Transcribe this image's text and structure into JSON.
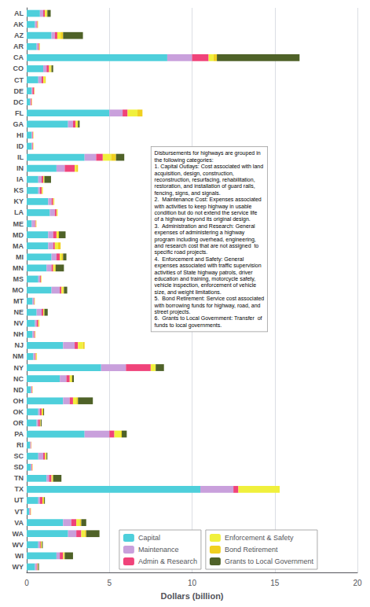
{
  "chart_data": {
    "type": "bar",
    "orientation": "horizontal",
    "stacked": true,
    "xlabel": "Dollars (billion)",
    "xlim": [
      0,
      20
    ],
    "xticks": [
      0,
      5,
      10,
      15,
      20
    ],
    "grid": true,
    "legend": "lower left",
    "categories": [
      "AL",
      "AK",
      "AZ",
      "AR",
      "CA",
      "CO",
      "CT",
      "DE",
      "DC",
      "FL",
      "GA",
      "HI",
      "ID",
      "IL",
      "IN",
      "IA",
      "KS",
      "KY",
      "LA",
      "ME",
      "MD",
      "MA",
      "MI",
      "MN",
      "MS",
      "MO",
      "MT",
      "NE",
      "NV",
      "NH",
      "NJ",
      "NM",
      "NY",
      "NC",
      "ND",
      "OH",
      "OK",
      "OR",
      "PA",
      "RI",
      "SC",
      "SD",
      "TN",
      "TX",
      "UT",
      "VT",
      "VA",
      "WA",
      "WV",
      "WI",
      "WY"
    ],
    "series": [
      {
        "name": "Capital",
        "color": "#4ECFDB",
        "values": [
          0.8,
          0.5,
          1.5,
          0.6,
          8.5,
          1.0,
          0.7,
          0.3,
          0.2,
          5.0,
          2.5,
          0.3,
          0.3,
          3.5,
          1.8,
          0.7,
          0.7,
          1.3,
          1.4,
          0.3,
          1.3,
          1.3,
          1.5,
          1.2,
          0.7,
          1.5,
          0.35,
          0.6,
          0.5,
          0.35,
          2.2,
          0.4,
          4.5,
          2.0,
          0.25,
          2.2,
          0.7,
          0.6,
          3.5,
          0.2,
          0.7,
          0.25,
          1.2,
          10.5,
          0.7,
          0.15,
          2.2,
          2.5,
          0.7,
          1.8,
          0.5
        ]
      },
      {
        "name": "Maintenance",
        "color": "#C9A0DC",
        "values": [
          0.2,
          0.1,
          0.2,
          0.1,
          1.5,
          0.2,
          0.2,
          0.05,
          0.05,
          0.8,
          0.3,
          0.05,
          0.05,
          0.7,
          0.5,
          0.2,
          0.1,
          0.2,
          0.3,
          0.2,
          0.3,
          0.3,
          0.3,
          0.3,
          0.1,
          0.5,
          0.08,
          0.3,
          0.1,
          0.1,
          0.7,
          0.1,
          1.5,
          0.4,
          0.05,
          0.4,
          0.1,
          0.1,
          1.5,
          0.05,
          0.3,
          0.05,
          0.15,
          2.0,
          0.1,
          0.05,
          0.5,
          0.5,
          0.1,
          0.2,
          0.1
        ]
      },
      {
        "name": "Admin & Research",
        "color": "#F0437A",
        "values": [
          0.1,
          0.05,
          0.15,
          0.05,
          1.0,
          0.15,
          0.1,
          0.1,
          0.05,
          0.3,
          0.15,
          0.03,
          0.03,
          0.4,
          0.6,
          0.1,
          0.1,
          0.1,
          0.1,
          0.05,
          0.2,
          0.1,
          0.2,
          0.1,
          0.05,
          0.1,
          0.03,
          0.1,
          0.1,
          0.05,
          0.2,
          0.05,
          1.5,
          0.2,
          0.03,
          0.2,
          0.1,
          0.1,
          0.3,
          0.02,
          0.1,
          0.03,
          0.15,
          0.3,
          0.15,
          0.03,
          0.3,
          0.3,
          0.05,
          0.2,
          0.05
        ]
      },
      {
        "name": "Enforcement & Safety",
        "color": "#F0F03C",
        "values": [
          0.1,
          0.03,
          0.2,
          0.03,
          0.3,
          0.1,
          0.1,
          0.02,
          0.02,
          0.6,
          0.1,
          0.02,
          0.02,
          0.5,
          0.1,
          0.05,
          0.05,
          0.05,
          0.05,
          0.03,
          0.1,
          0.2,
          0.1,
          0.1,
          0.03,
          0.1,
          0.02,
          0.05,
          0.05,
          0.02,
          0.3,
          0.05,
          0.3,
          0.1,
          0.02,
          0.2,
          0.05,
          0.03,
          0.4,
          0.01,
          0.05,
          0.02,
          0.05,
          2.5,
          0.05,
          0.02,
          0.2,
          0.2,
          0.05,
          0.05,
          0.02
        ]
      },
      {
        "name": "Bond Retirement",
        "color": "#F0D020",
        "values": [
          0.05,
          0.01,
          0.15,
          0.02,
          0.2,
          0.05,
          0.05,
          0.01,
          0.01,
          0.3,
          0.05,
          0.01,
          0.01,
          0.3,
          0.1,
          0.02,
          0.02,
          0.02,
          0.02,
          0.01,
          0.05,
          0.15,
          0.1,
          0.05,
          0.02,
          0.05,
          0.01,
          0.02,
          0.02,
          0.01,
          0.1,
          0.02,
          0.0,
          0.05,
          0.01,
          0.1,
          0.05,
          0.02,
          0.05,
          0.01,
          0.05,
          0.01,
          0.05,
          0.0,
          0.05,
          0.01,
          0.1,
          0.1,
          0.02,
          0.05,
          0.02
        ]
      },
      {
        "name": "Grants to Local Government",
        "color": "#4F6228",
        "values": [
          0.2,
          0.0,
          1.2,
          0.0,
          5.0,
          0.1,
          0.0,
          0.0,
          0.0,
          0.0,
          0.1,
          0.0,
          0.0,
          0.5,
          0.0,
          0.4,
          0.0,
          0.0,
          0.0,
          0.0,
          0.4,
          0.0,
          0.2,
          0.5,
          0.0,
          0.2,
          0.0,
          0.2,
          0.0,
          0.0,
          0.0,
          0.0,
          0.5,
          0.1,
          0.0,
          0.9,
          0.05,
          0.05,
          0.3,
          0.0,
          0.05,
          0.0,
          0.5,
          0.0,
          0.05,
          0.0,
          0.3,
          0.8,
          0.05,
          0.5,
          0.05
        ]
      }
    ],
    "annotations": [
      "Disbursements for highways are grouped in\nthe following categories:\n1. Capital Outlays: Cost associated with land\nacquisition, design, construction,\nreconstruction, resurfacing, rehabilitation,\nrestoration, and installation of guard rails,\nfencing, signs, and signals.\n2.  Maintenance Cost: Expenses associated\nwith activities to keep highway in usable\ncondition but do not extend the service life\nof a highway beyond its original design.\n3.  Administration and Research: General\nexpenses of administering a highway\nprogram including overhead, engineering,\nand research cost that are not assigned  to\nspecific road projects.\n4.  Enforcement and Safety: General\nexpenses associated with traffic supervision\nactivities of State highway patrols, driver\neducation and training, motorcycle safety,\nvehicle inspection, enforcement of vehicle\nsize, and weight limitations.\n5.  Bond Retirement: Service cost associated\nwith borrowing funds for highway, road, and\nstreet projects.\n6.  Grants to Local Government: Transfer  of\nfunds to local governments."
    ]
  }
}
